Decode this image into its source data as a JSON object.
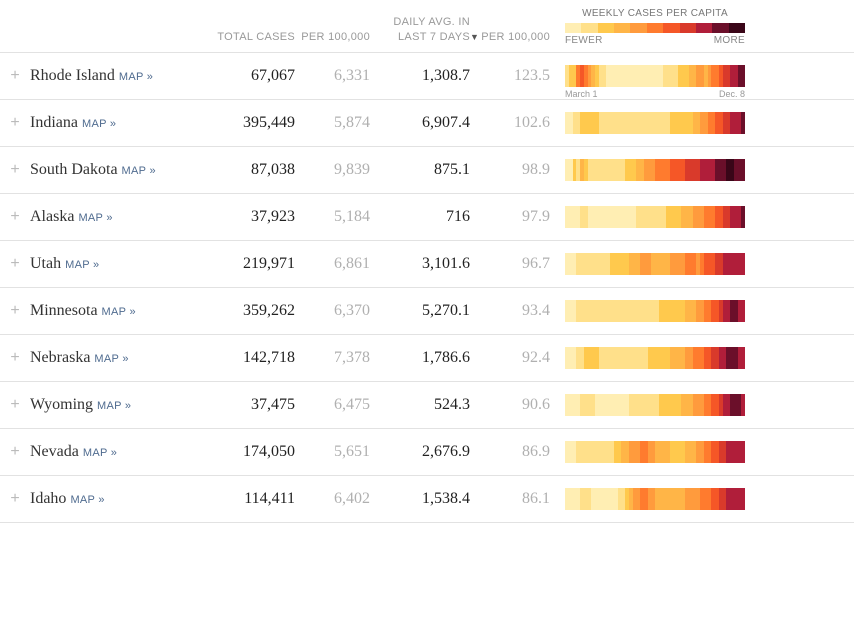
{
  "headers": {
    "total_cases": "TOTAL CASES",
    "per_100k": "PER 100,000",
    "daily_avg_7": "DAILY AVG. IN LAST 7 DAYS",
    "avg_per_100k": "PER 100,000",
    "sort_indicator": "▼",
    "heatmap_title": "WEEKLY CASES PER CAPITA",
    "legend_fewer": "FEWER",
    "legend_more": "MORE"
  },
  "map_link_text": "MAP »",
  "first_row_date_annotations": {
    "start": "March 1",
    "end": "Dec. 8"
  },
  "palette": {
    "heatmap": [
      "#ffeeb3",
      "#ffe08a",
      "#ffc94d",
      "#ffb547",
      "#ff9b3d",
      "#ff7b2e",
      "#f55727",
      "#d93a2b",
      "#b01e3a",
      "#6b0f2a",
      "#3a0618"
    ],
    "row_border": "#e2e2e2",
    "muted_text": "#b0b0b0",
    "strong_text": "#222222",
    "link_text": "#4f6b8f",
    "header_text": "#999999",
    "expand_icon": "#bbbbbb"
  },
  "rows": [
    {
      "state": "Rhode Island",
      "total_cases": "67,067",
      "per_100k": "6,331",
      "daily_avg_7": "1,308.7",
      "avg_per_100k": "123.5",
      "heat": [
        1,
        2,
        2,
        5,
        6,
        5,
        4,
        3,
        2,
        1,
        1,
        0,
        0,
        0,
        0,
        0,
        0,
        0,
        0,
        0,
        0,
        0,
        0,
        0,
        0,
        0,
        1,
        1,
        1,
        1,
        2,
        2,
        2,
        3,
        3,
        4,
        4,
        3,
        4,
        5,
        5,
        6,
        7,
        7,
        8,
        8,
        9,
        9
      ]
    },
    {
      "state": "Indiana",
      "total_cases": "395,449",
      "per_100k": "5,874",
      "daily_avg_7": "6,907.4",
      "avg_per_100k": "102.6",
      "heat": [
        0,
        0,
        1,
        1,
        2,
        2,
        2,
        2,
        2,
        1,
        1,
        1,
        1,
        1,
        1,
        1,
        1,
        1,
        1,
        1,
        1,
        1,
        1,
        1,
        1,
        1,
        1,
        1,
        2,
        2,
        2,
        2,
        2,
        2,
        3,
        3,
        4,
        4,
        5,
        5,
        6,
        6,
        7,
        7,
        8,
        8,
        8,
        9
      ]
    },
    {
      "state": "South Dakota",
      "total_cases": "87,038",
      "per_100k": "9,839",
      "daily_avg_7": "875.1",
      "avg_per_100k": "98.9",
      "heat": [
        0,
        0,
        2,
        1,
        3,
        2,
        1,
        1,
        1,
        1,
        1,
        1,
        1,
        1,
        1,
        1,
        2,
        2,
        2,
        3,
        3,
        4,
        4,
        4,
        5,
        5,
        5,
        5,
        6,
        6,
        6,
        6,
        7,
        7,
        7,
        7,
        8,
        8,
        8,
        8,
        9,
        9,
        9,
        10,
        10,
        9,
        9,
        9
      ]
    },
    {
      "state": "Alaska",
      "total_cases": "37,923",
      "per_100k": "5,184",
      "daily_avg_7": "716",
      "avg_per_100k": "97.9",
      "heat": [
        0,
        0,
        0,
        0,
        1,
        1,
        0,
        0,
        0,
        0,
        0,
        0,
        0,
        0,
        0,
        0,
        0,
        0,
        0,
        1,
        1,
        1,
        1,
        1,
        1,
        1,
        1,
        2,
        2,
        2,
        2,
        3,
        3,
        3,
        4,
        4,
        4,
        5,
        5,
        5,
        6,
        6,
        7,
        7,
        8,
        8,
        8,
        9
      ]
    },
    {
      "state": "Utah",
      "total_cases": "219,971",
      "per_100k": "6,861",
      "daily_avg_7": "3,101.6",
      "avg_per_100k": "96.7",
      "heat": [
        0,
        0,
        0,
        1,
        1,
        1,
        1,
        1,
        1,
        1,
        1,
        1,
        2,
        2,
        2,
        2,
        2,
        3,
        3,
        3,
        4,
        4,
        4,
        3,
        3,
        3,
        3,
        3,
        4,
        4,
        4,
        4,
        5,
        5,
        5,
        4,
        5,
        6,
        6,
        6,
        7,
        7,
        8,
        8,
        8,
        8,
        8,
        8
      ]
    },
    {
      "state": "Minnesota",
      "total_cases": "359,262",
      "per_100k": "6,370",
      "daily_avg_7": "5,270.1",
      "avg_per_100k": "93.4",
      "heat": [
        0,
        0,
        0,
        1,
        1,
        1,
        1,
        1,
        1,
        1,
        1,
        1,
        1,
        1,
        1,
        1,
        1,
        1,
        1,
        1,
        1,
        1,
        1,
        1,
        1,
        2,
        2,
        2,
        2,
        2,
        2,
        2,
        3,
        3,
        3,
        4,
        4,
        5,
        5,
        6,
        6,
        7,
        8,
        8,
        9,
        9,
        8,
        8
      ]
    },
    {
      "state": "Nebraska",
      "total_cases": "142,718",
      "per_100k": "7,378",
      "daily_avg_7": "1,786.6",
      "avg_per_100k": "92.4",
      "heat": [
        0,
        0,
        0,
        1,
        1,
        2,
        2,
        2,
        2,
        1,
        1,
        1,
        1,
        1,
        1,
        1,
        1,
        1,
        1,
        1,
        1,
        1,
        2,
        2,
        2,
        2,
        2,
        2,
        3,
        3,
        3,
        3,
        4,
        4,
        5,
        5,
        5,
        6,
        6,
        7,
        7,
        8,
        8,
        9,
        9,
        9,
        8,
        8
      ]
    },
    {
      "state": "Wyoming",
      "total_cases": "37,475",
      "per_100k": "6,475",
      "daily_avg_7": "524.3",
      "avg_per_100k": "90.6",
      "heat": [
        0,
        0,
        0,
        0,
        1,
        1,
        1,
        1,
        0,
        0,
        0,
        0,
        0,
        0,
        0,
        0,
        0,
        1,
        1,
        1,
        1,
        1,
        1,
        1,
        1,
        2,
        2,
        2,
        2,
        2,
        2,
        3,
        3,
        3,
        4,
        4,
        4,
        5,
        5,
        6,
        6,
        7,
        8,
        8,
        9,
        9,
        9,
        8
      ]
    },
    {
      "state": "Nevada",
      "total_cases": "174,050",
      "per_100k": "5,651",
      "daily_avg_7": "2,676.9",
      "avg_per_100k": "86.9",
      "heat": [
        0,
        0,
        0,
        1,
        1,
        1,
        1,
        1,
        1,
        1,
        1,
        1,
        1,
        2,
        2,
        3,
        3,
        4,
        4,
        4,
        5,
        5,
        4,
        4,
        3,
        3,
        3,
        3,
        2,
        2,
        2,
        2,
        3,
        3,
        3,
        4,
        4,
        5,
        5,
        6,
        6,
        7,
        7,
        8,
        8,
        8,
        8,
        8
      ]
    },
    {
      "state": "Idaho",
      "total_cases": "114,411",
      "per_100k": "6,402",
      "daily_avg_7": "1,538.4",
      "avg_per_100k": "86.1",
      "heat": [
        0,
        0,
        0,
        0,
        1,
        1,
        1,
        0,
        0,
        0,
        0,
        0,
        0,
        0,
        1,
        1,
        2,
        3,
        4,
        4,
        5,
        5,
        4,
        4,
        3,
        3,
        3,
        3,
        3,
        3,
        3,
        3,
        4,
        4,
        4,
        4,
        5,
        5,
        5,
        6,
        6,
        7,
        7,
        8,
        8,
        8,
        8,
        8
      ]
    }
  ]
}
